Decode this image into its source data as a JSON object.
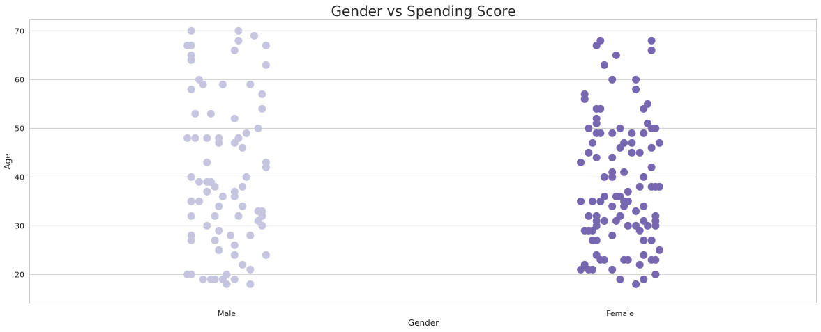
{
  "chart_data": {
    "type": "scatter",
    "title": "Gender vs Spending Score",
    "xlabel": "Gender",
    "ylabel": "Age",
    "categories": [
      "Male",
      "Female"
    ],
    "ylim": [
      14.2,
      72.2
    ],
    "yticks": [
      20,
      30,
      40,
      50,
      60,
      70
    ],
    "grid": true,
    "colors": {
      "Male": "#c5c5e0",
      "Female": "#7766b0"
    },
    "series": [
      {
        "category": "Male",
        "points": [
          {
            "x": -0.09,
            "y": 70
          },
          {
            "x": 0.03,
            "y": 70
          },
          {
            "x": 0.07,
            "y": 69
          },
          {
            "x": 0.03,
            "y": 68
          },
          {
            "x": -0.09,
            "y": 67
          },
          {
            "x": -0.1,
            "y": 67
          },
          {
            "x": 0.1,
            "y": 67
          },
          {
            "x": 0.02,
            "y": 66
          },
          {
            "x": -0.09,
            "y": 65
          },
          {
            "x": -0.09,
            "y": 64
          },
          {
            "x": 0.1,
            "y": 63
          },
          {
            "x": -0.07,
            "y": 60
          },
          {
            "x": -0.06,
            "y": 59
          },
          {
            "x": -0.01,
            "y": 59
          },
          {
            "x": -0.01,
            "y": 59
          },
          {
            "x": 0.06,
            "y": 59
          },
          {
            "x": -0.09,
            "y": 58
          },
          {
            "x": 0.09,
            "y": 57
          },
          {
            "x": 0.09,
            "y": 54
          },
          {
            "x": -0.08,
            "y": 53
          },
          {
            "x": -0.04,
            "y": 53
          },
          {
            "x": 0.02,
            "y": 52
          },
          {
            "x": 0.08,
            "y": 50
          },
          {
            "x": 0.05,
            "y": 49
          },
          {
            "x": -0.1,
            "y": 48
          },
          {
            "x": -0.08,
            "y": 48
          },
          {
            "x": -0.05,
            "y": 48
          },
          {
            "x": -0.02,
            "y": 48
          },
          {
            "x": 0.03,
            "y": 48
          },
          {
            "x": -0.02,
            "y": 47
          },
          {
            "x": 0.02,
            "y": 47
          },
          {
            "x": 0.04,
            "y": 46
          },
          {
            "x": -0.05,
            "y": 43
          },
          {
            "x": 0.1,
            "y": 43
          },
          {
            "x": 0.1,
            "y": 42
          },
          {
            "x": -0.09,
            "y": 40
          },
          {
            "x": 0.05,
            "y": 40
          },
          {
            "x": -0.07,
            "y": 39
          },
          {
            "x": -0.05,
            "y": 39
          },
          {
            "x": -0.04,
            "y": 39
          },
          {
            "x": -0.03,
            "y": 38
          },
          {
            "x": 0.04,
            "y": 38
          },
          {
            "x": -0.05,
            "y": 37
          },
          {
            "x": 0.02,
            "y": 37
          },
          {
            "x": -0.01,
            "y": 36
          },
          {
            "x": 0.02,
            "y": 36
          },
          {
            "x": -0.09,
            "y": 35
          },
          {
            "x": -0.09,
            "y": 35
          },
          {
            "x": -0.07,
            "y": 35
          },
          {
            "x": -0.02,
            "y": 34
          },
          {
            "x": 0.04,
            "y": 34
          },
          {
            "x": 0.08,
            "y": 33
          },
          {
            "x": 0.09,
            "y": 33
          },
          {
            "x": -0.09,
            "y": 32
          },
          {
            "x": -0.03,
            "y": 32
          },
          {
            "x": 0.03,
            "y": 32
          },
          {
            "x": 0.09,
            "y": 32
          },
          {
            "x": 0.08,
            "y": 31
          },
          {
            "x": -0.05,
            "y": 30
          },
          {
            "x": 0.09,
            "y": 30
          },
          {
            "x": -0.02,
            "y": 29
          },
          {
            "x": -0.09,
            "y": 28
          },
          {
            "x": 0.01,
            "y": 28
          },
          {
            "x": 0.06,
            "y": 28
          },
          {
            "x": -0.09,
            "y": 27
          },
          {
            "x": -0.03,
            "y": 27
          },
          {
            "x": 0.02,
            "y": 26
          },
          {
            "x": 0.02,
            "y": 26
          },
          {
            "x": -0.02,
            "y": 25
          },
          {
            "x": -0.02,
            "y": 25
          },
          {
            "x": 0.02,
            "y": 24
          },
          {
            "x": 0.1,
            "y": 24
          },
          {
            "x": 0.04,
            "y": 22
          },
          {
            "x": 0.06,
            "y": 21
          },
          {
            "x": -0.1,
            "y": 20
          },
          {
            "x": -0.09,
            "y": 20
          },
          {
            "x": 0.0,
            "y": 20
          },
          {
            "x": -0.06,
            "y": 19
          },
          {
            "x": -0.04,
            "y": 19
          },
          {
            "x": -0.03,
            "y": 19
          },
          {
            "x": -0.01,
            "y": 19
          },
          {
            "x": -0.01,
            "y": 19
          },
          {
            "x": 0.02,
            "y": 19
          },
          {
            "x": 0.0,
            "y": 18
          },
          {
            "x": 0.06,
            "y": 18
          }
        ]
      },
      {
        "category": "Female",
        "points": [
          {
            "x": -0.05,
            "y": 68
          },
          {
            "x": 0.08,
            "y": 68
          },
          {
            "x": -0.06,
            "y": 67
          },
          {
            "x": 0.08,
            "y": 66
          },
          {
            "x": -0.01,
            "y": 65
          },
          {
            "x": -0.04,
            "y": 63
          },
          {
            "x": -0.02,
            "y": 60
          },
          {
            "x": 0.04,
            "y": 60
          },
          {
            "x": 0.04,
            "y": 58
          },
          {
            "x": -0.09,
            "y": 57
          },
          {
            "x": -0.09,
            "y": 56
          },
          {
            "x": 0.07,
            "y": 55
          },
          {
            "x": -0.06,
            "y": 54
          },
          {
            "x": -0.05,
            "y": 54
          },
          {
            "x": 0.06,
            "y": 54
          },
          {
            "x": -0.06,
            "y": 52
          },
          {
            "x": -0.06,
            "y": 51
          },
          {
            "x": 0.07,
            "y": 51
          },
          {
            "x": -0.08,
            "y": 50
          },
          {
            "x": -0.0,
            "y": 50
          },
          {
            "x": 0.08,
            "y": 50
          },
          {
            "x": 0.09,
            "y": 50
          },
          {
            "x": -0.06,
            "y": 49
          },
          {
            "x": -0.05,
            "y": 49
          },
          {
            "x": -0.02,
            "y": 49
          },
          {
            "x": 0.03,
            "y": 49
          },
          {
            "x": 0.06,
            "y": 49
          },
          {
            "x": -0.07,
            "y": 47
          },
          {
            "x": 0.01,
            "y": 47
          },
          {
            "x": 0.03,
            "y": 47
          },
          {
            "x": 0.1,
            "y": 47
          },
          {
            "x": -0.0,
            "y": 46
          },
          {
            "x": 0.08,
            "y": 46
          },
          {
            "x": -0.08,
            "y": 45
          },
          {
            "x": 0.03,
            "y": 45
          },
          {
            "x": 0.05,
            "y": 45
          },
          {
            "x": -0.06,
            "y": 44
          },
          {
            "x": -0.02,
            "y": 44
          },
          {
            "x": -0.1,
            "y": 43
          },
          {
            "x": 0.08,
            "y": 42
          },
          {
            "x": -0.02,
            "y": 41
          },
          {
            "x": 0.01,
            "y": 41
          },
          {
            "x": -0.04,
            "y": 40
          },
          {
            "x": -0.02,
            "y": 40
          },
          {
            "x": 0.06,
            "y": 40
          },
          {
            "x": 0.05,
            "y": 38
          },
          {
            "x": 0.08,
            "y": 38
          },
          {
            "x": 0.09,
            "y": 38
          },
          {
            "x": 0.1,
            "y": 38
          },
          {
            "x": 0.02,
            "y": 37
          },
          {
            "x": -0.04,
            "y": 36
          },
          {
            "x": -0.01,
            "y": 36
          },
          {
            "x": 0.0,
            "y": 36
          },
          {
            "x": -0.1,
            "y": 35
          },
          {
            "x": -0.07,
            "y": 35
          },
          {
            "x": -0.05,
            "y": 35
          },
          {
            "x": 0.01,
            "y": 35
          },
          {
            "x": 0.02,
            "y": 35
          },
          {
            "x": -0.02,
            "y": 34
          },
          {
            "x": 0.01,
            "y": 34
          },
          {
            "x": 0.06,
            "y": 34
          },
          {
            "x": 0.04,
            "y": 33
          },
          {
            "x": -0.08,
            "y": 32
          },
          {
            "x": -0.06,
            "y": 32
          },
          {
            "x": -0.0,
            "y": 32
          },
          {
            "x": 0.0,
            "y": 32
          },
          {
            "x": 0.09,
            "y": 32
          },
          {
            "x": -0.06,
            "y": 31
          },
          {
            "x": -0.04,
            "y": 31
          },
          {
            "x": -0.04,
            "y": 31
          },
          {
            "x": -0.01,
            "y": 31
          },
          {
            "x": 0.06,
            "y": 31
          },
          {
            "x": 0.09,
            "y": 31
          },
          {
            "x": -0.06,
            "y": 30
          },
          {
            "x": 0.02,
            "y": 30
          },
          {
            "x": 0.04,
            "y": 30
          },
          {
            "x": 0.07,
            "y": 30
          },
          {
            "x": 0.09,
            "y": 30
          },
          {
            "x": -0.09,
            "y": 29
          },
          {
            "x": -0.08,
            "y": 29
          },
          {
            "x": -0.07,
            "y": 29
          },
          {
            "x": 0.05,
            "y": 29
          },
          {
            "x": -0.02,
            "y": 28
          },
          {
            "x": -0.07,
            "y": 27
          },
          {
            "x": -0.06,
            "y": 27
          },
          {
            "x": 0.06,
            "y": 27
          },
          {
            "x": 0.08,
            "y": 27
          },
          {
            "x": 0.1,
            "y": 25
          },
          {
            "x": -0.06,
            "y": 24
          },
          {
            "x": 0.06,
            "y": 24
          },
          {
            "x": -0.05,
            "y": 23
          },
          {
            "x": -0.04,
            "y": 23
          },
          {
            "x": 0.01,
            "y": 23
          },
          {
            "x": 0.02,
            "y": 23
          },
          {
            "x": 0.08,
            "y": 23
          },
          {
            "x": 0.09,
            "y": 23
          },
          {
            "x": -0.09,
            "y": 22
          },
          {
            "x": 0.05,
            "y": 22
          },
          {
            "x": -0.1,
            "y": 21
          },
          {
            "x": -0.08,
            "y": 21
          },
          {
            "x": -0.07,
            "y": 21
          },
          {
            "x": -0.02,
            "y": 21
          },
          {
            "x": 0.09,
            "y": 20
          },
          {
            "x": 0.09,
            "y": 20
          },
          {
            "x": -0.0,
            "y": 19
          },
          {
            "x": 0.06,
            "y": 19
          },
          {
            "x": 0.04,
            "y": 18
          }
        ]
      }
    ]
  }
}
